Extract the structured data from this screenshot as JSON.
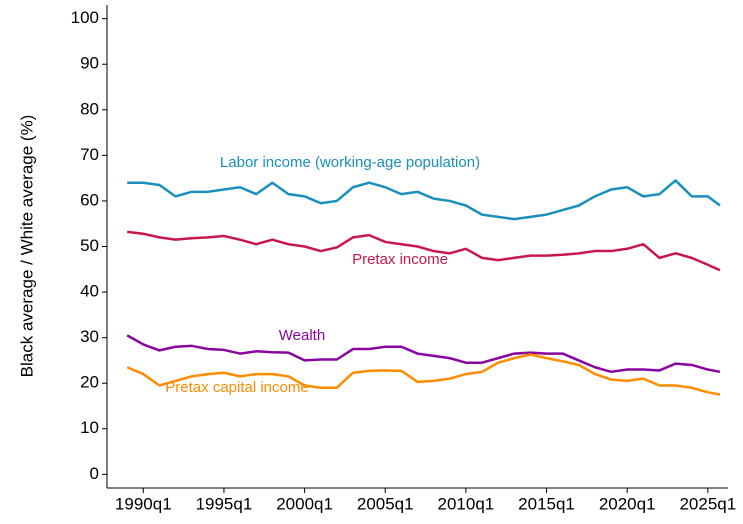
{
  "chart_data": {
    "type": "line",
    "y_label": "Black average / White average (%)",
    "x": [
      1989,
      1990,
      1991,
      1992,
      1993,
      1994,
      1995,
      1996,
      1997,
      1998,
      1999,
      2000,
      2001,
      2002,
      2003,
      2004,
      2005,
      2006,
      2007,
      2008,
      2009,
      2010,
      2011,
      2012,
      2013,
      2014,
      2015,
      2016,
      2017,
      2018,
      2019,
      2020,
      2021,
      2022,
      2023,
      2024,
      2025,
      2025.75
    ],
    "series": [
      {
        "name": "Labor income (working-age population)",
        "color": "#1a8fbd",
        "values": [
          64,
          64,
          63.5,
          61,
          62,
          62,
          62.5,
          63,
          61.5,
          64,
          61.5,
          61,
          59.5,
          60,
          63,
          64,
          63,
          61.5,
          62,
          60.5,
          60,
          59,
          57,
          56.5,
          56,
          56.5,
          57,
          58,
          59,
          61,
          62.5,
          63,
          61,
          61.5,
          64.5,
          61,
          61,
          59
        ]
      },
      {
        "name": "Pretax income",
        "color": "#c8174b",
        "values": [
          53.2,
          52.8,
          52,
          51.5,
          51.8,
          52,
          52.3,
          51.5,
          50.5,
          51.5,
          50.5,
          50,
          49,
          49.8,
          52,
          52.5,
          51,
          50.5,
          50,
          49,
          48.5,
          49.5,
          47.5,
          47,
          47.5,
          48,
          48,
          48.2,
          48.5,
          49,
          49,
          49.5,
          50.5,
          47.5,
          48.5,
          47.5,
          46,
          44.8
        ]
      },
      {
        "name": "Wealth",
        "color": "#8a05a0",
        "values": [
          30.5,
          28.5,
          27.2,
          28,
          28.2,
          27.5,
          27.3,
          26.5,
          27,
          26.8,
          26.7,
          25,
          25.2,
          25.2,
          27.5,
          27.5,
          28,
          28,
          26.5,
          26,
          25.5,
          24.5,
          24.5,
          25.5,
          26.5,
          26.7,
          26.5,
          26.5,
          25,
          23.5,
          22.5,
          23,
          23,
          22.8,
          24.3,
          24,
          23,
          22.5
        ]
      },
      {
        "name": "Pretax capital income",
        "color": "#ff8c00",
        "values": [
          23.5,
          22,
          19.5,
          20.5,
          21.5,
          22,
          22.3,
          21.5,
          22,
          22,
          21.5,
          19.5,
          19,
          19,
          22.3,
          22.7,
          22.8,
          22.7,
          20.3,
          20.5,
          21,
          22,
          22.5,
          24.5,
          25.5,
          26.3,
          25.5,
          24.8,
          24,
          22,
          20.8,
          20.5,
          21,
          19.5,
          19.5,
          19,
          18,
          17.5
        ]
      }
    ],
    "xlim": [
      1987.75,
      2026.25
    ],
    "xticks": [
      {
        "value": 1990,
        "label": "1990q1"
      },
      {
        "value": 1995,
        "label": "1995q1"
      },
      {
        "value": 2000,
        "label": "2000q1"
      },
      {
        "value": 2005,
        "label": "2005q1"
      },
      {
        "value": 2010,
        "label": "2010q1"
      },
      {
        "value": 2015,
        "label": "2015q1"
      },
      {
        "value": 2020,
        "label": "2020q1"
      },
      {
        "value": 2025,
        "label": "2025q1"
      }
    ],
    "ylim": [
      -3,
      103
    ],
    "yticks": [
      0,
      10,
      20,
      30,
      40,
      50,
      60,
      70,
      80,
      90,
      100
    ]
  }
}
